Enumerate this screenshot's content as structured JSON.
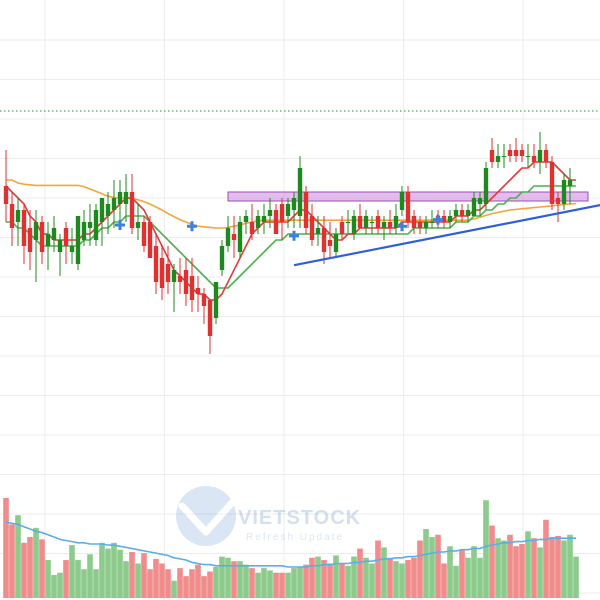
{
  "chart_data": {
    "type": "candlestick",
    "grid": true,
    "colors": {
      "up": "#1e8a1e",
      "down": "#e03131",
      "volume_up": "#8ccb8c",
      "volume_down": "#f08c8c",
      "ma_fast": "#e23b3b",
      "ma_mid": "#4fb04f",
      "ma_slow": "#f4a540",
      "volume_ma": "#5aaee8",
      "trendline": "#2f5fd8",
      "resistance_zone": "#cc88dd",
      "marker": "#3b82e0",
      "dotted_level": "#2e8b2e",
      "grid": "#ececec"
    },
    "price_range": [
      0,
      100
    ],
    "volume_range": [
      0,
      100
    ],
    "dotted_level": 81.5,
    "resistance_zone": {
      "from": 37,
      "to": 97,
      "low": 66.5,
      "high": 68.0
    },
    "trendline": {
      "from": [
        48,
        55.8
      ],
      "to": [
        100,
        66.0
      ]
    },
    "markers": [
      {
        "index": 19,
        "value": 62.5
      },
      {
        "index": 31,
        "value": 62.3
      },
      {
        "index": 48,
        "value": 60.7
      },
      {
        "index": 66,
        "value": 62.3
      },
      {
        "index": 72,
        "value": 63.4
      }
    ],
    "candles": [
      {
        "o": 69,
        "h": 75,
        "l": 63,
        "c": 66
      },
      {
        "o": 66,
        "h": 68,
        "l": 59,
        "c": 62
      },
      {
        "o": 63,
        "h": 67,
        "l": 59,
        "c": 65
      },
      {
        "o": 65,
        "h": 66,
        "l": 56,
        "c": 59
      },
      {
        "o": 62,
        "h": 65,
        "l": 55,
        "c": 58
      },
      {
        "o": 60,
        "h": 65,
        "l": 53,
        "c": 63
      },
      {
        "o": 63,
        "h": 64,
        "l": 56,
        "c": 58
      },
      {
        "o": 59,
        "h": 63,
        "l": 55,
        "c": 61
      },
      {
        "o": 60,
        "h": 64,
        "l": 58,
        "c": 62
      },
      {
        "o": 58,
        "h": 61,
        "l": 54,
        "c": 60
      },
      {
        "o": 62,
        "h": 63,
        "l": 56,
        "c": 59
      },
      {
        "o": 58,
        "h": 62,
        "l": 56,
        "c": 59
      },
      {
        "o": 56,
        "h": 64,
        "l": 55,
        "c": 64
      },
      {
        "o": 60,
        "h": 65,
        "l": 59,
        "c": 63
      },
      {
        "o": 62,
        "h": 66,
        "l": 59,
        "c": 63
      },
      {
        "o": 60,
        "h": 66,
        "l": 59,
        "c": 65
      },
      {
        "o": 63,
        "h": 67,
        "l": 59,
        "c": 67
      },
      {
        "o": 64,
        "h": 68,
        "l": 61,
        "c": 66
      },
      {
        "o": 65,
        "h": 70,
        "l": 62,
        "c": 67
      },
      {
        "o": 66,
        "h": 70,
        "l": 63,
        "c": 68
      },
      {
        "o": 66,
        "h": 71,
        "l": 63,
        "c": 68
      },
      {
        "o": 68,
        "h": 71,
        "l": 61,
        "c": 62
      },
      {
        "o": 62,
        "h": 66,
        "l": 60,
        "c": 63
      },
      {
        "o": 63,
        "h": 64,
        "l": 58,
        "c": 59
      },
      {
        "o": 63,
        "h": 64,
        "l": 57,
        "c": 57
      },
      {
        "o": 59,
        "h": 61,
        "l": 51,
        "c": 53
      },
      {
        "o": 57,
        "h": 59,
        "l": 50,
        "c": 52
      },
      {
        "o": 56,
        "h": 59,
        "l": 51,
        "c": 53
      },
      {
        "o": 53,
        "h": 56,
        "l": 48,
        "c": 55
      },
      {
        "o": 54,
        "h": 57,
        "l": 51,
        "c": 53
      },
      {
        "o": 55,
        "h": 57,
        "l": 49,
        "c": 51
      },
      {
        "o": 54,
        "h": 57,
        "l": 48,
        "c": 50
      },
      {
        "o": 52,
        "h": 54,
        "l": 48,
        "c": 51
      },
      {
        "o": 51,
        "h": 52,
        "l": 46,
        "c": 49
      },
      {
        "o": 50,
        "h": 50,
        "l": 41,
        "c": 44
      },
      {
        "o": 47,
        "h": 53,
        "l": 46,
        "c": 53
      },
      {
        "o": 55,
        "h": 60,
        "l": 54,
        "c": 59
      },
      {
        "o": 59,
        "h": 64,
        "l": 58,
        "c": 62
      },
      {
        "o": 61,
        "h": 64,
        "l": 57,
        "c": 60
      },
      {
        "o": 58,
        "h": 64,
        "l": 57,
        "c": 63
      },
      {
        "o": 63,
        "h": 65,
        "l": 61,
        "c": 64
      },
      {
        "o": 63,
        "h": 66,
        "l": 60,
        "c": 61
      },
      {
        "o": 62,
        "h": 65,
        "l": 61,
        "c": 64
      },
      {
        "o": 63,
        "h": 66,
        "l": 61,
        "c": 64
      },
      {
        "o": 64,
        "h": 67,
        "l": 62,
        "c": 65
      },
      {
        "o": 65,
        "h": 66,
        "l": 61,
        "c": 61
      },
      {
        "o": 66,
        "h": 67,
        "l": 60,
        "c": 63
      },
      {
        "o": 64,
        "h": 67,
        "l": 62,
        "c": 66
      },
      {
        "o": 65,
        "h": 68,
        "l": 62,
        "c": 67
      },
      {
        "o": 64,
        "h": 74,
        "l": 62,
        "c": 72
      },
      {
        "o": 68,
        "h": 69,
        "l": 61,
        "c": 62
      },
      {
        "o": 64,
        "h": 66,
        "l": 59,
        "c": 60
      },
      {
        "o": 61,
        "h": 64,
        "l": 59,
        "c": 62
      },
      {
        "o": 62,
        "h": 64,
        "l": 56,
        "c": 58
      },
      {
        "o": 60,
        "h": 63,
        "l": 57,
        "c": 59
      },
      {
        "o": 58,
        "h": 62,
        "l": 57,
        "c": 61
      },
      {
        "o": 63,
        "h": 64,
        "l": 60,
        "c": 61
      },
      {
        "o": 63,
        "h": 65,
        "l": 61,
        "c": 63
      },
      {
        "o": 61,
        "h": 65,
        "l": 60,
        "c": 64
      },
      {
        "o": 64,
        "h": 66,
        "l": 62,
        "c": 62
      },
      {
        "o": 62,
        "h": 65,
        "l": 61,
        "c": 64
      },
      {
        "o": 63,
        "h": 64,
        "l": 61,
        "c": 63
      },
      {
        "o": 64,
        "h": 65,
        "l": 61,
        "c": 62
      },
      {
        "o": 62,
        "h": 64,
        "l": 60,
        "c": 63
      },
      {
        "o": 63,
        "h": 65,
        "l": 61,
        "c": 62
      },
      {
        "o": 62,
        "h": 66,
        "l": 61,
        "c": 64
      },
      {
        "o": 65,
        "h": 69,
        "l": 64,
        "c": 68
      },
      {
        "o": 68,
        "h": 69,
        "l": 62,
        "c": 63
      },
      {
        "o": 64,
        "h": 65,
        "l": 61,
        "c": 62
      },
      {
        "o": 63,
        "h": 64,
        "l": 61,
        "c": 62
      },
      {
        "o": 62,
        "h": 64,
        "l": 61,
        "c": 63
      },
      {
        "o": 63,
        "h": 65,
        "l": 62,
        "c": 63
      },
      {
        "o": 64,
        "h": 65,
        "l": 62,
        "c": 63
      },
      {
        "o": 64,
        "h": 65,
        "l": 62,
        "c": 63
      },
      {
        "o": 63,
        "h": 65,
        "l": 62,
        "c": 64
      },
      {
        "o": 64,
        "h": 66,
        "l": 63,
        "c": 65
      },
      {
        "o": 65,
        "h": 66,
        "l": 63,
        "c": 64
      },
      {
        "o": 64,
        "h": 66,
        "l": 63,
        "c": 65
      },
      {
        "o": 64,
        "h": 68,
        "l": 64,
        "c": 67
      },
      {
        "o": 66,
        "h": 68,
        "l": 64,
        "c": 67
      },
      {
        "o": 66,
        "h": 73,
        "l": 65,
        "c": 72
      },
      {
        "o": 75,
        "h": 77,
        "l": 72,
        "c": 73
      },
      {
        "o": 73,
        "h": 76,
        "l": 72,
        "c": 74
      },
      {
        "o": 74,
        "h": 76,
        "l": 72,
        "c": 74
      },
      {
        "o": 75,
        "h": 76,
        "l": 73,
        "c": 74
      },
      {
        "o": 75,
        "h": 77,
        "l": 73,
        "c": 74
      },
      {
        "o": 75,
        "h": 76,
        "l": 73,
        "c": 74
      },
      {
        "o": 74,
        "h": 76,
        "l": 72,
        "c": 74
      },
      {
        "o": 74,
        "h": 76,
        "l": 72,
        "c": 73
      },
      {
        "o": 73,
        "h": 78,
        "l": 71,
        "c": 75
      },
      {
        "o": 75,
        "h": 76,
        "l": 72,
        "c": 73
      },
      {
        "o": 73,
        "h": 74,
        "l": 65,
        "c": 66
      },
      {
        "o": 67,
        "h": 68,
        "l": 63,
        "c": 66
      },
      {
        "o": 66,
        "h": 71,
        "l": 65,
        "c": 70
      },
      {
        "o": 69,
        "h": 72,
        "l": 66,
        "c": 70
      }
    ],
    "ma_fast": [
      69,
      68,
      67,
      66,
      64,
      63,
      61,
      61,
      60,
      60,
      60,
      60,
      60,
      61,
      61,
      62,
      63,
      64,
      65,
      66,
      67,
      67,
      66,
      65,
      63,
      61,
      59,
      57,
      55,
      54,
      53,
      52,
      51,
      51,
      50,
      50,
      51,
      53,
      55,
      57,
      59,
      61,
      62,
      63,
      63,
      63,
      63,
      63,
      64,
      65,
      65,
      64,
      63,
      62,
      61,
      60,
      60,
      61,
      61,
      62,
      62,
      62,
      62,
      62,
      62,
      62,
      63,
      63,
      63,
      63,
      63,
      63,
      63,
      63,
      63,
      64,
      64,
      64,
      65,
      65,
      66,
      67,
      68,
      69,
      70,
      71,
      72,
      72,
      73,
      73,
      73,
      73,
      72,
      71,
      70,
      70
    ],
    "ma_mid": [
      63,
      63,
      62,
      62,
      61,
      60,
      59,
      59,
      59,
      59,
      59,
      59,
      59,
      60,
      60,
      61,
      62,
      62,
      63,
      63,
      64,
      64,
      64,
      64,
      63,
      62,
      61,
      60,
      59,
      58,
      57,
      56,
      55,
      54,
      53,
      52,
      52,
      52,
      53,
      54,
      55,
      56,
      57,
      58,
      59,
      60,
      60,
      61,
      61,
      61,
      61,
      61,
      61,
      61,
      61,
      61,
      61,
      61,
      61,
      61,
      61,
      61,
      61,
      61,
      61,
      61,
      61,
      61,
      62,
      62,
      62,
      62,
      62,
      62,
      62,
      63,
      63,
      63,
      64,
      64,
      65,
      65,
      66,
      66,
      67,
      67,
      68,
      68,
      69,
      69,
      69,
      69,
      69,
      69,
      69,
      69
    ],
    "ma_slow": [
      70,
      70,
      69.5,
      69.3,
      69.2,
      69.1,
      69.1,
      69.1,
      69.1,
      69.1,
      69.1,
      69.1,
      69.1,
      68.9,
      68.5,
      68.1,
      67.7,
      67.3,
      67.1,
      67.0,
      67.0,
      66.9,
      66.7,
      66.4,
      66.0,
      65.5,
      65.0,
      64.4,
      63.9,
      63.4,
      63.0,
      62.6,
      62.3,
      62.2,
      62.1,
      62.0,
      62.0,
      62.1,
      62.3,
      62.5,
      62.8,
      63.0,
      63.2,
      63.3,
      63.3,
      63.3,
      63.3,
      63.3,
      63.3,
      63.3,
      63.3,
      63.3,
      63.3,
      63.3,
      63.3,
      63.3,
      63.3,
      63.3,
      63.3,
      63.3,
      63.3,
      63.3,
      63.3,
      63.3,
      63.3,
      63.3,
      63.3,
      63.3,
      63.3,
      63.3,
      63.3,
      63.3,
      63.3,
      63.3,
      63.3,
      63.3,
      63.3,
      63.3,
      63.5,
      63.8,
      64.1,
      64.4,
      64.6,
      64.8,
      65.0,
      65.1,
      65.2,
      65.3,
      65.4,
      65.5,
      65.6,
      65.7,
      65.8,
      65.9,
      66.0,
      66.1
    ],
    "volume": [
      87,
      64,
      72,
      48,
      53,
      61,
      51,
      33,
      20,
      22,
      33,
      46,
      33,
      25,
      38,
      25,
      48,
      43,
      48,
      42,
      32,
      40,
      30,
      39,
      25,
      34,
      30,
      25,
      15,
      26,
      19,
      25,
      29,
      19,
      23,
      27,
      36,
      35,
      32,
      32,
      29,
      26,
      22,
      26,
      24,
      22,
      22,
      22,
      26,
      27,
      29,
      35,
      36,
      33,
      30,
      37,
      30,
      28,
      36,
      43,
      35,
      30,
      50,
      44,
      35,
      32,
      30,
      33,
      35,
      50,
      60,
      53,
      55,
      30,
      45,
      28,
      42,
      35,
      45,
      35,
      85,
      63,
      52,
      50,
      55,
      45,
      47,
      58,
      52,
      44,
      68,
      53,
      54,
      50,
      55,
      36
    ],
    "volume_ma": [
      66,
      65,
      64,
      62,
      60,
      58,
      57,
      55,
      53,
      51,
      50,
      49,
      48,
      48,
      47,
      47,
      47,
      46,
      46,
      45,
      44,
      43,
      42,
      41,
      40,
      39,
      38,
      37,
      35,
      34,
      33,
      31,
      30,
      29,
      29,
      28,
      28,
      28,
      28,
      28,
      28,
      28,
      28,
      28,
      28,
      28,
      28,
      27,
      27,
      27,
      27,
      28,
      28,
      29,
      29,
      30,
      30,
      30,
      31,
      31,
      32,
      32,
      33,
      34,
      34,
      35,
      35,
      36,
      36,
      37,
      38,
      39,
      40,
      40,
      41,
      41,
      42,
      42,
      43,
      43,
      45,
      46,
      47,
      48,
      48,
      49,
      49,
      50,
      50,
      51,
      51,
      52,
      52,
      52,
      52,
      52
    ]
  },
  "watermark": {
    "brand": "VIETSTOCK",
    "tagline": "Refresh Update"
  }
}
